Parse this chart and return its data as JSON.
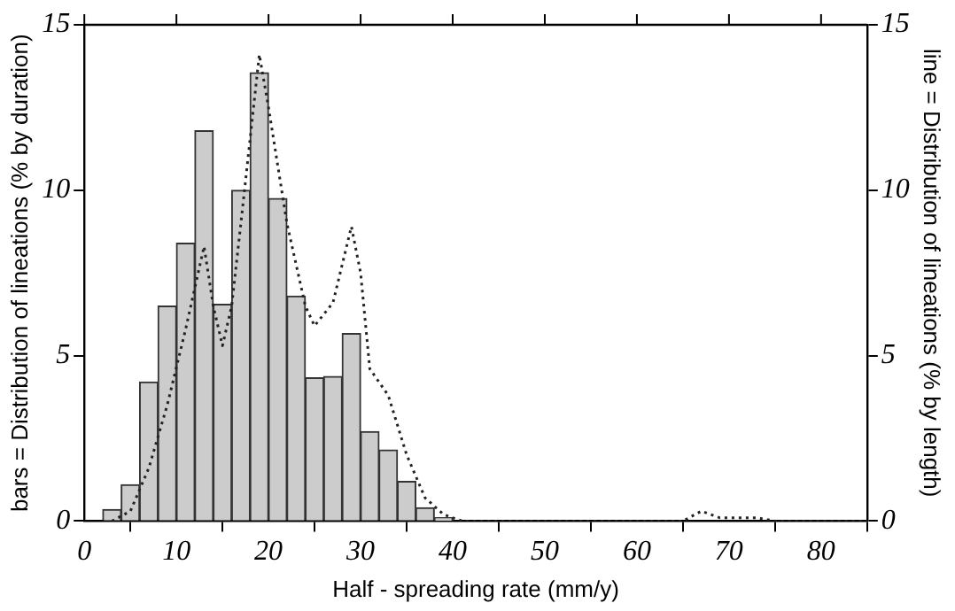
{
  "chart_data": {
    "type": "histogram",
    "xlabel": "Half - spreading rate (mm/y)",
    "ylabel": "bars = Distribution of lineations (% by duration)",
    "y2label": "line = Distribution of lineations (% by length)",
    "xlim": [
      0,
      85
    ],
    "xticks": [
      0,
      10,
      20,
      30,
      40,
      50,
      60,
      70,
      80
    ],
    "ylim": [
      0,
      15
    ],
    "yticks": [
      0,
      5,
      10,
      15
    ],
    "y2lim": [
      0,
      15
    ],
    "y2ticks": [
      0,
      5,
      10,
      15
    ],
    "grid": false,
    "legend": false,
    "series": [
      {
        "type": "histogram",
        "color": "#cccccc",
        "bins": [
          2,
          4,
          6,
          8,
          10,
          12,
          14,
          16,
          18,
          20,
          22,
          24,
          26,
          28,
          30,
          32,
          34,
          36,
          38,
          40
        ],
        "values": [
          0.35,
          1.1,
          4.2,
          6.5,
          8.4,
          11.8,
          6.55,
          10,
          13.55,
          9.75,
          6.8,
          4.33,
          4.37,
          5.67,
          2.7,
          2.15,
          1.2,
          0.4,
          0.1
        ]
      },
      {
        "type": "line",
        "axis": "y2",
        "color": "#222222",
        "line_style": "dotted",
        "marker": "none",
        "x": [
          3,
          5,
          7,
          9,
          11,
          13,
          14,
          15,
          16,
          17,
          19,
          20,
          22,
          24,
          25,
          27,
          29,
          30,
          31,
          33,
          35,
          37,
          39,
          41,
          65,
          67,
          69,
          73,
          75,
          85
        ],
        "values": [
          0,
          0.3,
          1.6,
          3.5,
          5.8,
          8.3,
          6.5,
          5.3,
          6.5,
          9,
          14.1,
          12.5,
          9,
          6.5,
          5.9,
          6.6,
          8.9,
          7.5,
          4.6,
          3.8,
          2,
          0.7,
          0.2,
          0,
          0,
          0.3,
          0.1,
          0.1,
          0,
          0
        ]
      }
    ]
  }
}
